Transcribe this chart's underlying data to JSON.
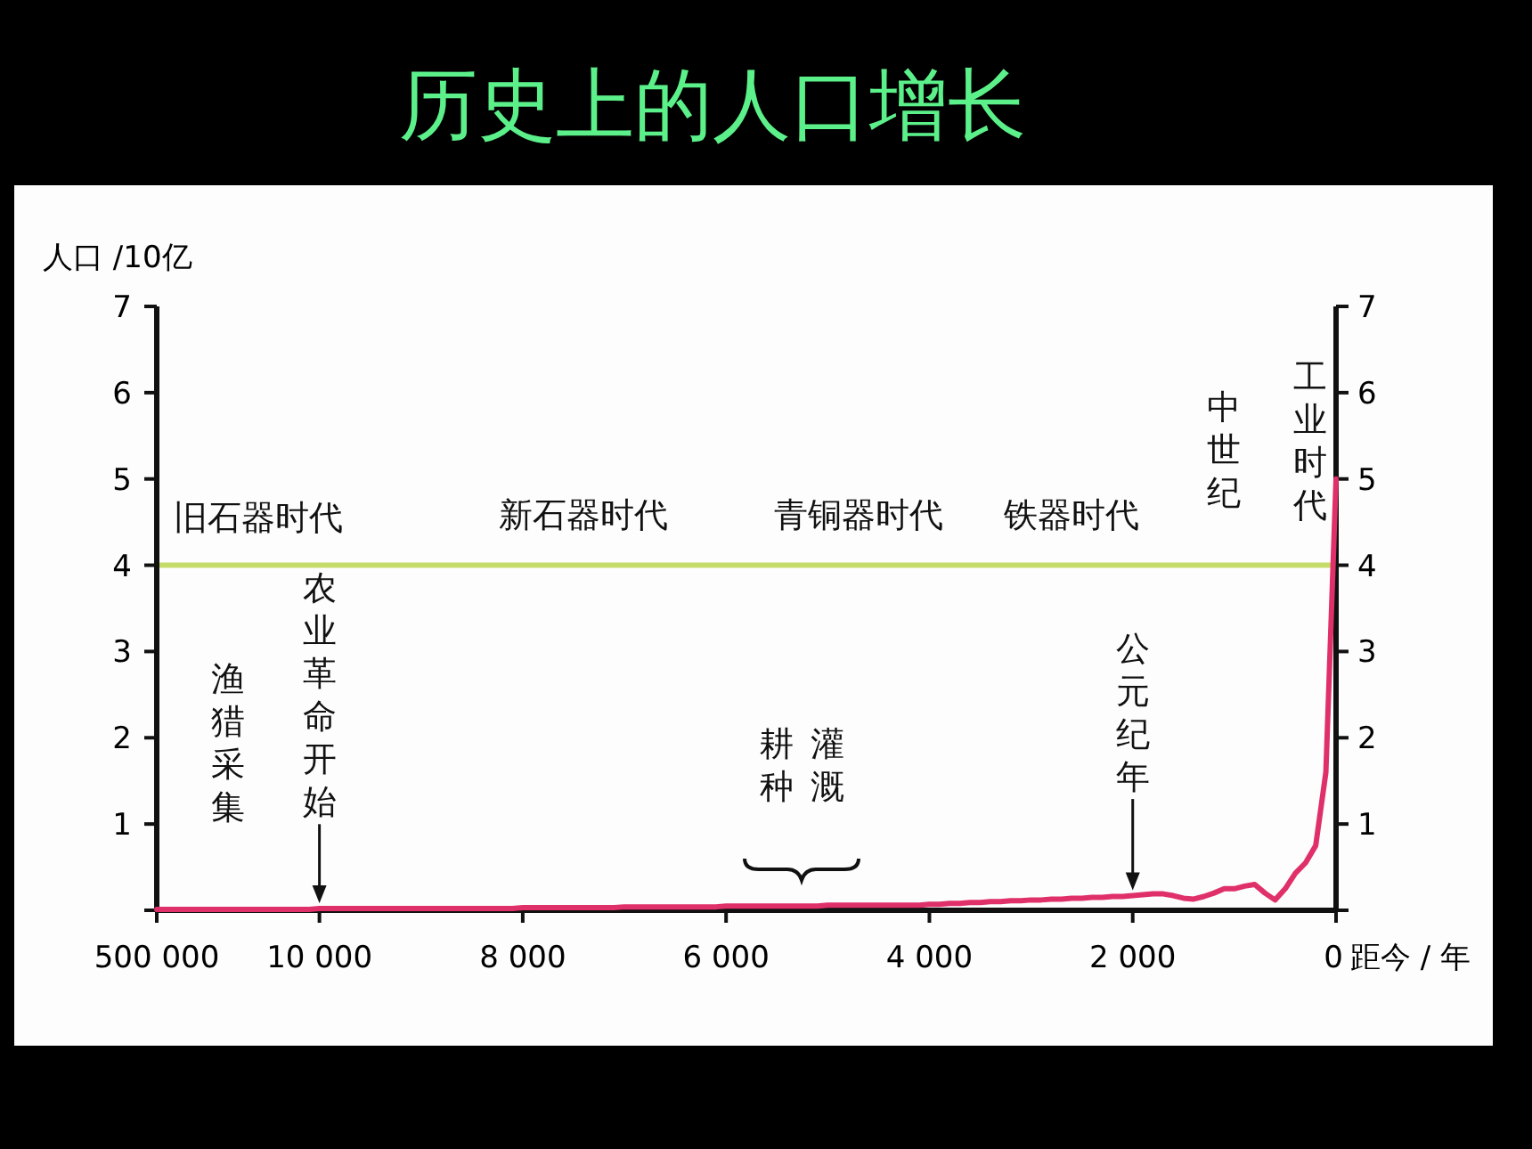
{
  "chart_data": {
    "type": "line",
    "title": "历史上的人口增长",
    "ylabel": "人口 /10亿",
    "xlabel": "距今 / 年",
    "categories": [
      "500 000",
      null,
      null,
      null,
      null,
      null,
      null,
      null,
      null,
      null,
      null,
      null,
      null,
      null,
      null,
      null,
      "10 000",
      null,
      null,
      null,
      null,
      null,
      null,
      null,
      null,
      null,
      null,
      null,
      null,
      null,
      null,
      null,
      null,
      null,
      null,
      null,
      "8 000",
      null,
      null,
      null,
      null,
      null,
      null,
      null,
      null,
      null,
      null,
      null,
      null,
      null,
      null,
      null,
      null,
      null,
      null,
      null,
      "6 000",
      null,
      null,
      null,
      null,
      null,
      null,
      null,
      null,
      null,
      null,
      null,
      null,
      null,
      null,
      null,
      null,
      null,
      null,
      null,
      "4 000",
      null,
      null,
      null,
      null,
      null,
      null,
      null,
      null,
      null,
      null,
      null,
      null,
      null,
      null,
      null,
      null,
      null,
      null,
      null,
      "2 000",
      null,
      null,
      null,
      null,
      null,
      null,
      null,
      null,
      null,
      null,
      null,
      null,
      null,
      null,
      null,
      null,
      null,
      null,
      null,
      "0"
    ],
    "series": [
      {
        "color": "#e0306a",
        "values": [
          0.01,
          0.01,
          0.01,
          0.01,
          0.01,
          0.01,
          0.01,
          0.01,
          0.01,
          0.01,
          0.01,
          0.01,
          0.01,
          0.01,
          0.01,
          0.01,
          0.02,
          0.02,
          0.02,
          0.02,
          0.02,
          0.02,
          0.02,
          0.02,
          0.02,
          0.02,
          0.02,
          0.02,
          0.02,
          0.02,
          0.02,
          0.02,
          0.02,
          0.02,
          0.02,
          0.02,
          0.03,
          0.03,
          0.03,
          0.03,
          0.03,
          0.03,
          0.03,
          0.03,
          0.03,
          0.03,
          0.04,
          0.04,
          0.04,
          0.04,
          0.04,
          0.04,
          0.04,
          0.04,
          0.04,
          0.04,
          0.05,
          0.05,
          0.05,
          0.05,
          0.05,
          0.05,
          0.05,
          0.05,
          0.05,
          0.05,
          0.06,
          0.06,
          0.06,
          0.06,
          0.06,
          0.06,
          0.06,
          0.06,
          0.06,
          0.06,
          0.07,
          0.07,
          0.08,
          0.08,
          0.09,
          0.09,
          0.1,
          0.1,
          0.11,
          0.11,
          0.12,
          0.12,
          0.13,
          0.13,
          0.14,
          0.14,
          0.15,
          0.15,
          0.16,
          0.16,
          0.17,
          0.18,
          0.19,
          0.19,
          0.17,
          0.14,
          0.13,
          0.16,
          0.2,
          0.25,
          0.25,
          0.28,
          0.3,
          0.2,
          0.12,
          0.25,
          0.43,
          0.55,
          0.75,
          1.6,
          5
        ]
      }
    ],
    "ylim": [
      0,
      7
    ],
    "yticks": [
      {
        "value": 0,
        "label": null
      },
      1,
      2,
      3,
      4,
      5,
      6,
      7
    ],
    "y2lim": [
      0,
      7
    ],
    "y2ticks": [
      {
        "value": 0,
        "label": null
      },
      1,
      2,
      3,
      4,
      5,
      6,
      7
    ],
    "ref_lines": [
      {
        "axis": "y",
        "value": 4,
        "label": null,
        "color": "#c5dc6a"
      }
    ],
    "annotations": [
      "旧石器时代",
      "新石器时代",
      "青铜器时代",
      "铁器时代",
      "中世纪",
      "工业时代",
      "渔猎采集",
      {
        "text": "农业革命开始",
        "x": "10 000",
        "y": 0.02
      },
      "耕种",
      "灌溉",
      {
        "text": "公元纪年",
        "x": "2 000",
        "y": 0.17
      }
    ],
    "grid": false
  }
}
